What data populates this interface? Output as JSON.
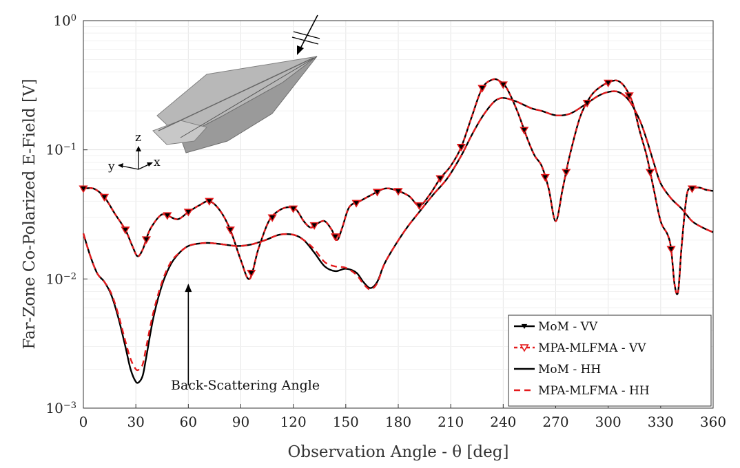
{
  "chart_data": {
    "type": "line",
    "title": "",
    "xlabel": "Observation Angle - θ [deg]",
    "ylabel": "Far-Zone Co-Polarized E-Field [V]",
    "xlim": [
      0,
      360
    ],
    "ylim": [
      0.001,
      1
    ],
    "yscale": "log",
    "grid": true,
    "legend_position": "bottom-right",
    "x_ticks": [
      0,
      30,
      60,
      90,
      120,
      150,
      180,
      210,
      240,
      270,
      300,
      330,
      360
    ],
    "x_tick_labels": [
      "0",
      "30",
      "60",
      "90",
      "120",
      "150",
      "180",
      "210",
      "240",
      "270",
      "300",
      "330",
      "360"
    ],
    "y_ticks": [
      {
        "value": 1,
        "base": "10",
        "exp": "0"
      },
      {
        "value": 0.1,
        "base": "10",
        "exp": "−1"
      },
      {
        "value": 0.01,
        "base": "10",
        "exp": "−2"
      },
      {
        "value": 0.001,
        "base": "10",
        "exp": "−3"
      }
    ],
    "series": [
      {
        "name": "MoM - VV",
        "color": "#000000",
        "dash": "solid",
        "marker": "filled-triangle-down",
        "x": [
          0,
          6,
          12,
          18,
          24,
          28,
          31,
          34,
          38,
          44,
          48,
          54,
          60,
          66,
          72,
          78,
          84,
          90,
          95,
          100,
          106,
          112,
          118,
          122,
          126,
          130,
          134,
          138,
          142,
          145,
          148,
          152,
          158,
          165,
          172,
          178,
          186,
          192,
          198,
          204,
          210,
          216,
          222,
          228,
          234,
          238,
          242,
          248,
          254,
          258,
          262,
          266,
          270,
          274,
          278,
          284,
          290,
          296,
          302,
          306,
          310,
          314,
          318,
          322,
          326,
          330,
          334,
          336,
          338,
          340,
          342,
          345,
          348,
          352,
          356,
          360
        ],
        "y": [
          0.05,
          0.05,
          0.043,
          0.032,
          0.024,
          0.018,
          0.015,
          0.017,
          0.024,
          0.031,
          0.031,
          0.029,
          0.033,
          0.037,
          0.04,
          0.034,
          0.024,
          0.014,
          0.01,
          0.017,
          0.028,
          0.034,
          0.036,
          0.034,
          0.028,
          0.025,
          0.027,
          0.028,
          0.024,
          0.02,
          0.025,
          0.036,
          0.04,
          0.045,
          0.05,
          0.049,
          0.044,
          0.037,
          0.045,
          0.06,
          0.075,
          0.105,
          0.18,
          0.3,
          0.35,
          0.34,
          0.3,
          0.2,
          0.12,
          0.09,
          0.075,
          0.05,
          0.028,
          0.05,
          0.09,
          0.18,
          0.26,
          0.31,
          0.34,
          0.34,
          0.3,
          0.23,
          0.14,
          0.09,
          0.05,
          0.028,
          0.022,
          0.017,
          0.009,
          0.008,
          0.018,
          0.045,
          0.05,
          0.051,
          0.049,
          0.048
        ],
        "marker_x": [
          0,
          12,
          24,
          36,
          48,
          60,
          72,
          84,
          96,
          108,
          120,
          132,
          144,
          156,
          168,
          180,
          192,
          204,
          216,
          228,
          240,
          252,
          264,
          276,
          288,
          300,
          312,
          324,
          336,
          348
        ]
      },
      {
        "name": "MPA-MLFMA - VV",
        "color": "#e41a1c",
        "dash": "5,4",
        "marker": "open-triangle-down",
        "x": [
          0,
          6,
          12,
          18,
          24,
          28,
          31,
          34,
          38,
          44,
          48,
          54,
          60,
          66,
          72,
          78,
          84,
          90,
          95,
          100,
          106,
          112,
          118,
          122,
          126,
          130,
          134,
          138,
          142,
          145,
          148,
          152,
          158,
          165,
          172,
          178,
          186,
          192,
          198,
          204,
          210,
          216,
          222,
          228,
          234,
          238,
          242,
          248,
          254,
          258,
          262,
          266,
          270,
          274,
          278,
          284,
          290,
          296,
          302,
          306,
          310,
          314,
          318,
          322,
          326,
          330,
          334,
          336,
          338,
          340,
          342,
          345,
          348,
          352,
          356,
          360
        ],
        "y": [
          0.05,
          0.05,
          0.043,
          0.032,
          0.024,
          0.018,
          0.015,
          0.017,
          0.024,
          0.031,
          0.031,
          0.029,
          0.033,
          0.037,
          0.04,
          0.034,
          0.024,
          0.014,
          0.01,
          0.017,
          0.028,
          0.034,
          0.036,
          0.034,
          0.028,
          0.025,
          0.027,
          0.028,
          0.024,
          0.02,
          0.025,
          0.036,
          0.04,
          0.045,
          0.05,
          0.049,
          0.044,
          0.037,
          0.045,
          0.06,
          0.075,
          0.105,
          0.18,
          0.3,
          0.35,
          0.34,
          0.3,
          0.2,
          0.12,
          0.09,
          0.075,
          0.05,
          0.028,
          0.05,
          0.09,
          0.18,
          0.26,
          0.31,
          0.34,
          0.34,
          0.3,
          0.23,
          0.14,
          0.09,
          0.05,
          0.028,
          0.022,
          0.017,
          0.009,
          0.008,
          0.018,
          0.045,
          0.05,
          0.051,
          0.049,
          0.048
        ],
        "marker_x": [
          0,
          12,
          24,
          36,
          48,
          60,
          72,
          84,
          96,
          108,
          120,
          132,
          144,
          156,
          168,
          180,
          192,
          204,
          216,
          228,
          240,
          252,
          264,
          276,
          288,
          300,
          312,
          324,
          336,
          348
        ]
      },
      {
        "name": "MoM - HH",
        "color": "#000000",
        "dash": "solid",
        "marker": "none",
        "x": [
          0,
          4,
          8,
          12,
          16,
          20,
          24,
          27,
          30,
          32,
          34,
          36,
          40,
          45,
          50,
          55,
          60,
          66,
          72,
          80,
          88,
          96,
          104,
          112,
          120,
          126,
          132,
          138,
          144,
          150,
          156,
          160,
          164,
          168,
          172,
          178,
          185,
          192,
          200,
          208,
          216,
          222,
          228,
          234,
          238,
          242,
          248,
          256,
          262,
          270,
          278,
          286,
          294,
          300,
          306,
          312,
          318,
          322,
          326,
          330,
          336,
          342,
          348,
          354,
          360
        ],
        "y": [
          0.0225,
          0.015,
          0.011,
          0.0095,
          0.0075,
          0.005,
          0.003,
          0.002,
          0.0016,
          0.0016,
          0.0018,
          0.0025,
          0.005,
          0.009,
          0.013,
          0.016,
          0.018,
          0.0188,
          0.019,
          0.0185,
          0.018,
          0.0185,
          0.02,
          0.022,
          0.022,
          0.02,
          0.016,
          0.0125,
          0.0115,
          0.012,
          0.0112,
          0.0095,
          0.0085,
          0.0095,
          0.013,
          0.018,
          0.025,
          0.033,
          0.045,
          0.06,
          0.09,
          0.13,
          0.18,
          0.23,
          0.25,
          0.25,
          0.235,
          0.21,
          0.2,
          0.185,
          0.19,
          0.22,
          0.26,
          0.28,
          0.28,
          0.24,
          0.17,
          0.12,
          0.08,
          0.055,
          0.042,
          0.035,
          0.028,
          0.025,
          0.023
        ]
      },
      {
        "name": "MPA-MLFMA - HH",
        "color": "#e41a1c",
        "dash": "9,6",
        "marker": "none",
        "x": [
          0,
          4,
          8,
          12,
          16,
          20,
          24,
          27,
          30,
          32,
          34,
          36,
          40,
          45,
          50,
          55,
          60,
          66,
          72,
          80,
          88,
          96,
          104,
          112,
          120,
          126,
          132,
          138,
          144,
          150,
          156,
          160,
          164,
          168,
          172,
          178,
          185,
          192,
          200,
          208,
          216,
          222,
          228,
          234,
          238,
          242,
          248,
          256,
          262,
          270,
          278,
          286,
          294,
          300,
          306,
          312,
          318,
          322,
          326,
          330,
          336,
          342,
          348,
          354,
          360
        ],
        "y": [
          0.0225,
          0.015,
          0.011,
          0.0095,
          0.0077,
          0.0053,
          0.0033,
          0.0024,
          0.002,
          0.002,
          0.0022,
          0.003,
          0.0055,
          0.0095,
          0.0135,
          0.016,
          0.018,
          0.0188,
          0.019,
          0.0185,
          0.018,
          0.0185,
          0.02,
          0.022,
          0.022,
          0.02,
          0.017,
          0.0135,
          0.0125,
          0.0122,
          0.0108,
          0.0092,
          0.0083,
          0.0093,
          0.013,
          0.018,
          0.025,
          0.033,
          0.045,
          0.06,
          0.09,
          0.13,
          0.18,
          0.23,
          0.25,
          0.25,
          0.235,
          0.21,
          0.2,
          0.185,
          0.19,
          0.22,
          0.26,
          0.28,
          0.28,
          0.24,
          0.17,
          0.12,
          0.08,
          0.055,
          0.042,
          0.035,
          0.028,
          0.025,
          0.023
        ]
      }
    ],
    "annotations": [
      {
        "text": "Back-Scattering Angle",
        "x": 60,
        "y": 0.0015,
        "arrow_to": [
          60,
          0.0092
        ]
      }
    ],
    "inset": {
      "axis_labels": [
        "z",
        "y",
        "x"
      ]
    }
  }
}
